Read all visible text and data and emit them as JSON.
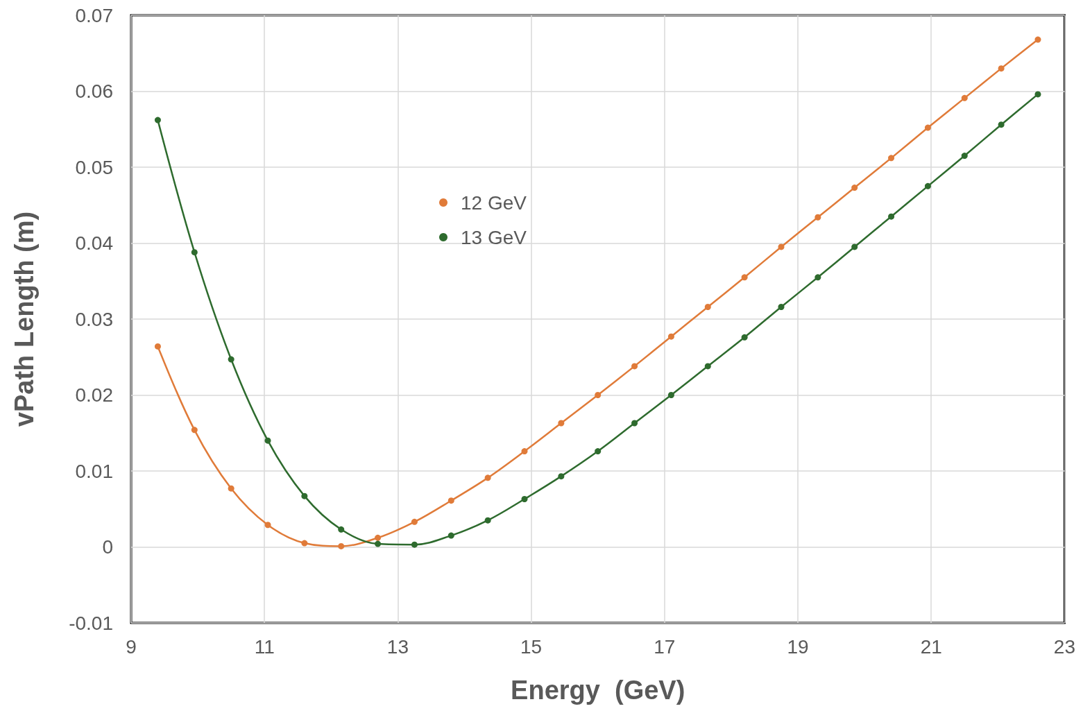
{
  "chart_data": {
    "type": "line",
    "xlabel": "Energy  (GeV)",
    "ylabel": "vPath Length (m)",
    "x": [
      9.4,
      9.95,
      10.5,
      11.05,
      11.6,
      12.15,
      12.7,
      13.25,
      13.8,
      14.35,
      14.9,
      15.45,
      16.0,
      16.55,
      17.1,
      17.65,
      18.2,
      18.75,
      19.3,
      19.85,
      20.4,
      20.95,
      21.5,
      22.05,
      22.6
    ],
    "series": [
      {
        "name": "12 GeV",
        "color": "#e07b39",
        "values": [
          0.0264,
          0.0154,
          0.0077,
          0.0029,
          0.0005,
          0.0001,
          0.0012,
          0.0033,
          0.0061,
          0.0091,
          0.0126,
          0.0163,
          0.02,
          0.0238,
          0.0277,
          0.0316,
          0.0355,
          0.0395,
          0.0434,
          0.0473,
          0.0512,
          0.0552,
          0.0591,
          0.063,
          0.0668
        ]
      },
      {
        "name": "13 GeV",
        "color": "#2e6b2e",
        "values": [
          0.0562,
          0.0388,
          0.0247,
          0.014,
          0.0067,
          0.0023,
          0.0004,
          0.0003,
          0.0015,
          0.0035,
          0.0063,
          0.0093,
          0.0126,
          0.0163,
          0.02,
          0.0238,
          0.0276,
          0.0316,
          0.0355,
          0.0395,
          0.0435,
          0.0475,
          0.0515,
          0.0556,
          0.0596
        ]
      }
    ],
    "xlim": [
      9,
      23
    ],
    "xticks": [
      9,
      11,
      13,
      15,
      17,
      19,
      21,
      23
    ],
    "ylim": [
      -0.01,
      0.07
    ],
    "yticks": [
      -0.01,
      0,
      0.01,
      0.02,
      0.03,
      0.04,
      0.05,
      0.06,
      0.07
    ],
    "grid": true,
    "legend": "top left",
    "marker": "circle",
    "line_style": "solid"
  }
}
